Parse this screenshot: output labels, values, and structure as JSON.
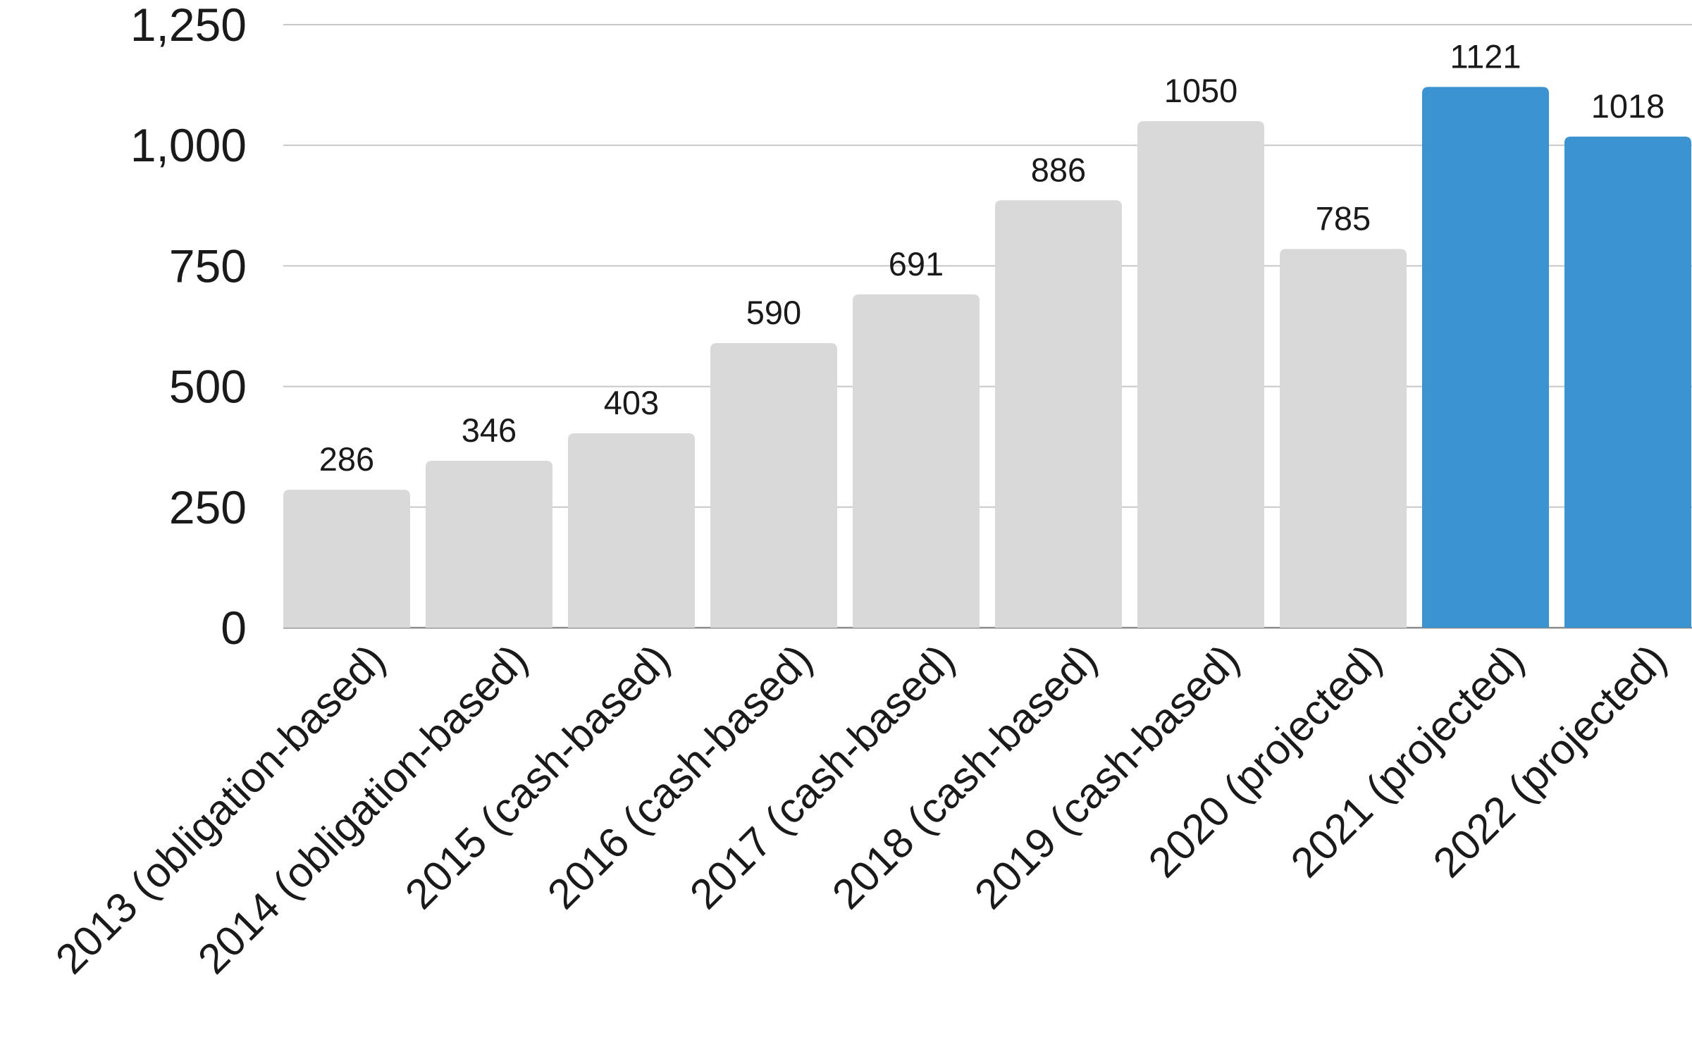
{
  "colors": {
    "bar_default": "#d9d9d9",
    "bar_highlight": "#3b93d2",
    "text": "#1a1a1a",
    "grid": "#c8c8c8"
  },
  "chart_data": {
    "type": "bar",
    "categories": [
      "2013 (obligation-based)",
      "2014 (obligation-based)",
      "2015 (cash-based)",
      "2016 (cash-based)",
      "2017 (cash-based)",
      "2018 (cash-based)",
      "2019 (cash-based)",
      "2020 (projected)",
      "2021 (projected)",
      "2022 (projected)"
    ],
    "values": [
      286,
      346,
      403,
      590,
      691,
      886,
      1050,
      785,
      1121,
      1018
    ],
    "data_labels": [
      "286",
      "346",
      "403",
      "590",
      "691",
      "886",
      "1050",
      "785",
      "1121",
      "1018"
    ],
    "highlighted": [
      false,
      false,
      false,
      false,
      false,
      false,
      false,
      false,
      true,
      true
    ],
    "ylim": [
      0,
      1250
    ],
    "yticks": [
      0,
      250,
      500,
      750,
      1000,
      1250
    ],
    "ytick_labels": [
      "0",
      "250",
      "500",
      "750",
      "1,000",
      "1,250"
    ],
    "title": "",
    "xlabel": "",
    "ylabel": "",
    "grid": true,
    "legend": "none"
  }
}
